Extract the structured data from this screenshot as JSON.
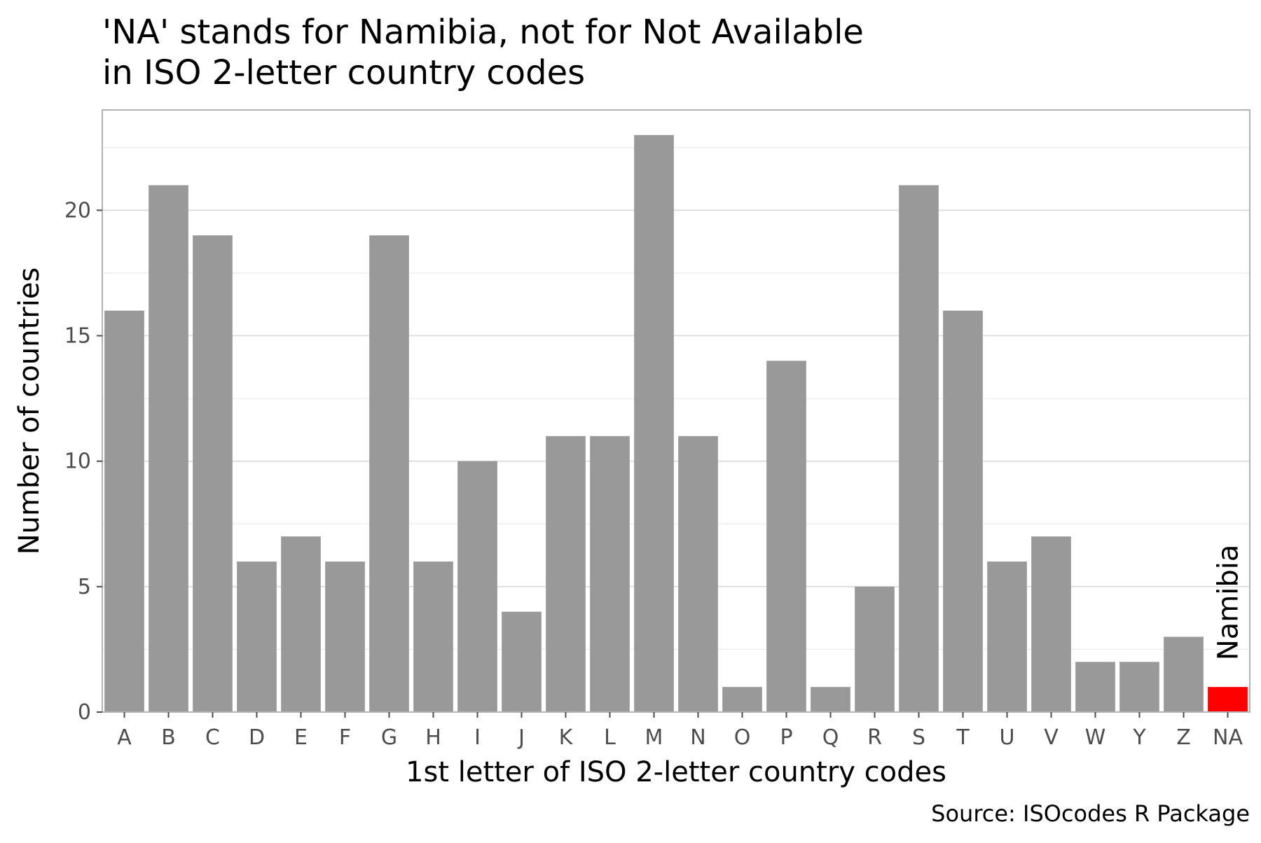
{
  "chart_data": {
    "type": "bar",
    "title": "'NA' stands for Namibia, not for Not Available\nin ISO 2-letter country codes",
    "xlabel": "1st letter of ISO 2-letter country codes",
    "ylabel": "Number of countries",
    "caption": "Source: ISOcodes R Package",
    "categories": [
      "A",
      "B",
      "C",
      "D",
      "E",
      "F",
      "G",
      "H",
      "I",
      "J",
      "K",
      "L",
      "M",
      "N",
      "O",
      "P",
      "Q",
      "R",
      "S",
      "T",
      "U",
      "V",
      "W",
      "Y",
      "Z",
      "NA"
    ],
    "values": [
      16,
      21,
      19,
      6,
      7,
      6,
      19,
      6,
      10,
      4,
      11,
      11,
      23,
      11,
      1,
      14,
      1,
      5,
      21,
      16,
      6,
      7,
      2,
      2,
      3,
      1
    ],
    "ylim": [
      0,
      24
    ],
    "yticks": [
      0,
      5,
      10,
      15,
      20
    ],
    "grid": true,
    "bar_color": "#999999",
    "highlight": {
      "category": "NA",
      "color": "#ff0000",
      "label": "Namibia"
    }
  }
}
